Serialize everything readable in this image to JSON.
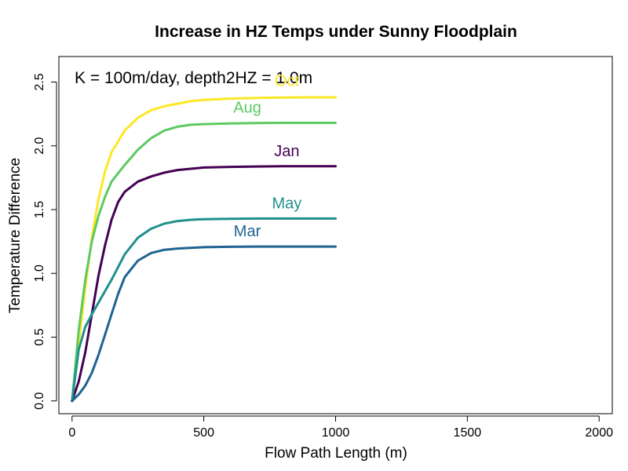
{
  "chart_data": {
    "type": "line",
    "title": "Increase in HZ Temps under Sunny Floodplain",
    "xlabel": "Flow Path Length (m)",
    "ylabel": "Temperature Difference",
    "annotation": "K = 100m/day, depth2HZ = 1.0m",
    "xlim": [
      -50,
      2050
    ],
    "ylim": [
      -0.1,
      2.7
    ],
    "xticks": [
      0,
      500,
      1000,
      1500,
      2000
    ],
    "yticks": [
      0.0,
      0.5,
      1.0,
      1.5,
      2.0,
      2.5
    ],
    "ytick_labels": [
      "0.0",
      "0.5",
      "1.0",
      "1.5",
      "2.0",
      "2.5"
    ],
    "grid": false,
    "series": [
      {
        "name": "Oct",
        "color": "#FDE725",
        "x": [
          0,
          25,
          50,
          75,
          100,
          125,
          150,
          200,
          250,
          300,
          350,
          400,
          450,
          500,
          600,
          700,
          800,
          900,
          1000
        ],
        "y": [
          0.0,
          0.45,
          0.88,
          1.28,
          1.58,
          1.8,
          1.95,
          2.12,
          2.22,
          2.28,
          2.31,
          2.33,
          2.35,
          2.36,
          2.37,
          2.375,
          2.378,
          2.38,
          2.38
        ]
      },
      {
        "name": "Aug",
        "color": "#5EC962",
        "x": [
          0,
          25,
          50,
          75,
          100,
          125,
          150,
          200,
          250,
          300,
          350,
          400,
          450,
          500,
          600,
          700,
          800,
          900,
          1000
        ],
        "y": [
          0.0,
          0.55,
          0.95,
          1.25,
          1.45,
          1.6,
          1.72,
          1.85,
          1.97,
          2.06,
          2.12,
          2.15,
          2.165,
          2.17,
          2.175,
          2.178,
          2.18,
          2.18,
          2.18
        ]
      },
      {
        "name": "Jan",
        "color": "#440154",
        "x": [
          0,
          25,
          50,
          75,
          100,
          125,
          150,
          175,
          200,
          250,
          300,
          350,
          400,
          450,
          500,
          600,
          700,
          800,
          900,
          1000
        ],
        "y": [
          0.0,
          0.15,
          0.38,
          0.68,
          0.98,
          1.22,
          1.42,
          1.56,
          1.64,
          1.72,
          1.76,
          1.79,
          1.81,
          1.82,
          1.83,
          1.835,
          1.838,
          1.84,
          1.84,
          1.84
        ]
      },
      {
        "name": "May",
        "color": "#21918C",
        "x": [
          0,
          25,
          50,
          75,
          100,
          150,
          200,
          250,
          300,
          350,
          400,
          450,
          500,
          600,
          700,
          800,
          900,
          1000
        ],
        "y": [
          0.0,
          0.4,
          0.58,
          0.68,
          0.77,
          0.95,
          1.15,
          1.28,
          1.35,
          1.39,
          1.41,
          1.42,
          1.425,
          1.428,
          1.43,
          1.43,
          1.43,
          1.43
        ]
      },
      {
        "name": "Mar",
        "color": "#1F6391",
        "x": [
          0,
          25,
          50,
          75,
          100,
          125,
          150,
          175,
          200,
          250,
          300,
          350,
          400,
          450,
          500,
          600,
          700,
          800,
          900,
          1000
        ],
        "y": [
          0.0,
          0.05,
          0.12,
          0.22,
          0.36,
          0.52,
          0.68,
          0.84,
          0.97,
          1.1,
          1.16,
          1.185,
          1.195,
          1.2,
          1.205,
          1.208,
          1.21,
          1.21,
          1.21,
          1.21
        ]
      }
    ],
    "labels": [
      {
        "text": "Oct",
        "x": 815,
        "y": 2.47,
        "color": "#FDE725"
      },
      {
        "text": "Aug",
        "x": 665,
        "y": 2.26,
        "color": "#5EC962"
      },
      {
        "text": "Jan",
        "x": 815,
        "y": 1.92,
        "color": "#440154"
      },
      {
        "text": "May",
        "x": 815,
        "y": 1.51,
        "color": "#21918C"
      },
      {
        "text": "Mar",
        "x": 665,
        "y": 1.29,
        "color": "#1F6391"
      }
    ]
  }
}
